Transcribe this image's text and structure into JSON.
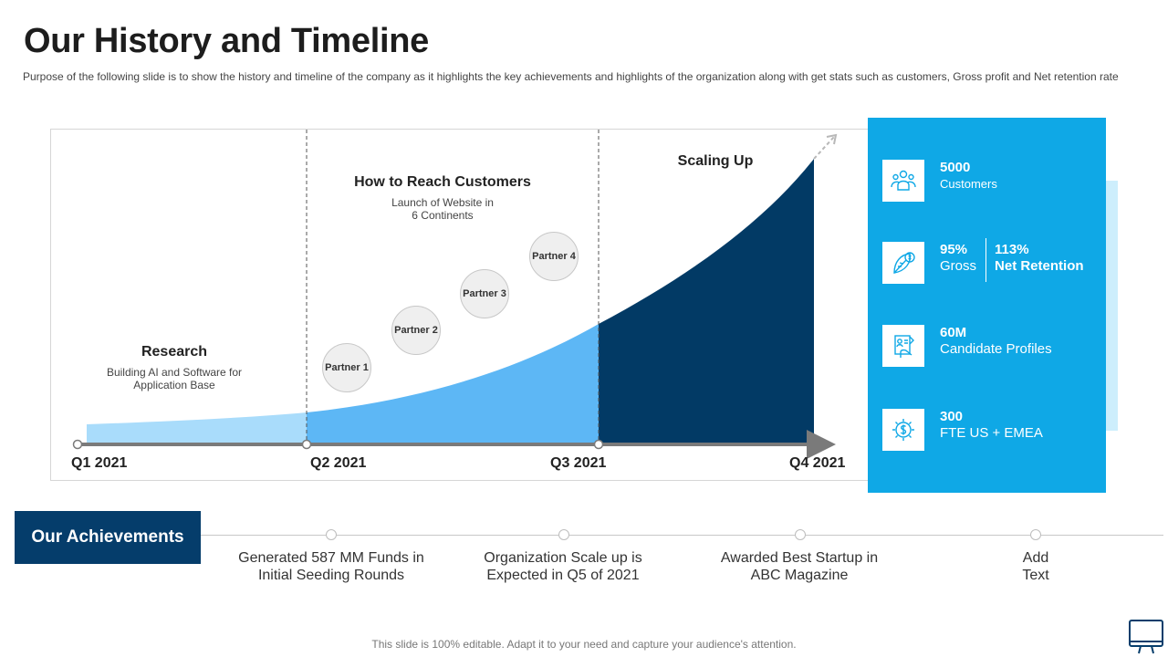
{
  "title": "Our History and Timeline",
  "subtitle": "Purpose of the following slide is to show the history and timeline of the company as it highlights the key achievements and highlights of the organization along with get stats such as customers, Gross profit and Net retention rate",
  "stages": [
    {
      "title": "Research",
      "desc": "Building AI and Software for Application Base"
    },
    {
      "title": "How to Reach Customers",
      "desc": "Launch of Website in 6 Continents"
    },
    {
      "title": "Scaling Up",
      "desc": ""
    }
  ],
  "partners": [
    "Partner 1",
    "Partner 2",
    "Partner 3",
    "Partner 4"
  ],
  "quarters": [
    "Q1 2021",
    "Q2 2021",
    "Q3 2021",
    "Q4 2021"
  ],
  "stats": [
    {
      "icon": "users-icon",
      "value": "5000",
      "label": "Customers"
    },
    {
      "icon": "leaf-dollar-icon",
      "value": "95%",
      "label": "Gross",
      "value2": "113%",
      "label2": "Net Retention"
    },
    {
      "icon": "candidate-profile-icon",
      "value": "60M",
      "label": "Candidate Profiles"
    },
    {
      "icon": "dollar-gear-icon",
      "value": "300",
      "label": "FTE US + EMEA"
    }
  ],
  "achievements": {
    "heading": "Our Achievements",
    "items": [
      "Generated 587 MM Funds in Initial Seeding Rounds",
      "Organization Scale up is Expected in Q5 of 2021",
      "Awarded Best Startup in ABC Magazine",
      "Add Text"
    ]
  },
  "footer": "This slide is 100% editable. Adapt it to your need and capture your audience's attention.",
  "colors": {
    "light_blue": "#a9dcfb",
    "mid_blue": "#5db7f5",
    "dark_blue": "#023a65",
    "panel_blue": "#0fa8e6",
    "achievement_navy": "#053d6b"
  }
}
